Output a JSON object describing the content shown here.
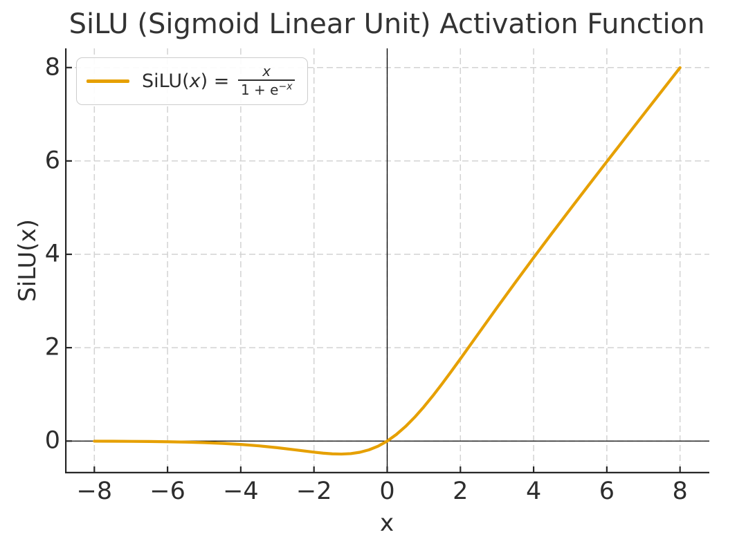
{
  "chart_data": {
    "type": "line",
    "title": "SiLU (Sigmoid Linear Unit) Activation Function",
    "xlabel": "x",
    "ylabel": "SiLU(x)",
    "xlim": [
      -8.8,
      8.8
    ],
    "ylim": [
      -0.692,
      8.411
    ],
    "grid": {
      "visible": true,
      "style": "dashed",
      "color": "#d2d2d2"
    },
    "spines": {
      "visible": [
        "left",
        "bottom"
      ],
      "color": "#262626"
    },
    "zero_lines": {
      "axhline_y": 0,
      "axvline_x": 0,
      "color": "#000000"
    },
    "xticks": {
      "values": [
        -8,
        -6,
        -4,
        -2,
        0,
        2,
        4,
        6,
        8
      ],
      "labels": [
        "−8",
        "−6",
        "−4",
        "−2",
        "0",
        "2",
        "4",
        "6",
        "8"
      ]
    },
    "yticks": {
      "values": [
        0,
        2,
        4,
        6,
        8
      ],
      "labels": [
        "0",
        "2",
        "4",
        "6",
        "8"
      ]
    },
    "legend": {
      "location": "upper left",
      "swatch_color": "#E6A000",
      "label_text": "SiLU(x) = x / (1 + e^(−x))",
      "fn_prefix": "SiLU(",
      "fn_var": "x",
      "fn_equals": ") = ",
      "frac_numerator": "x",
      "frac_denominator_base": "1 + e",
      "frac_denominator_exponent": "−x"
    },
    "series": [
      {
        "name": "SiLU",
        "color": "#E6A000",
        "linewidth": 4.2,
        "x": [
          -8,
          -7.5,
          -7,
          -6.5,
          -6,
          -5.5,
          -5,
          -4.5,
          -4,
          -3.5,
          -3,
          -2.5,
          -2,
          -1.75,
          -1.5,
          -1.25,
          -1,
          -0.75,
          -0.5,
          -0.25,
          0,
          0.25,
          0.5,
          0.75,
          1,
          1.25,
          1.5,
          1.75,
          2,
          2.5,
          3,
          3.5,
          4,
          4.5,
          5,
          5.5,
          6,
          6.5,
          7,
          7.5,
          8
        ],
        "y": [
          -0.0027,
          -0.0041,
          -0.0064,
          -0.0098,
          -0.0148,
          -0.0224,
          -0.0335,
          -0.0494,
          -0.0719,
          -0.1026,
          -0.1423,
          -0.1896,
          -0.2384,
          -0.2591,
          -0.2737,
          -0.2784,
          -0.2689,
          -0.2406,
          -0.1888,
          -0.1095,
          0,
          0.1405,
          0.3112,
          0.5094,
          0.7311,
          0.9716,
          1.2264,
          1.4909,
          1.7616,
          2.3104,
          2.8577,
          3.3974,
          3.9281,
          4.4506,
          4.9665,
          5.4776,
          5.9852,
          6.4902,
          6.9936,
          7.4959,
          7.9973
        ]
      }
    ]
  }
}
